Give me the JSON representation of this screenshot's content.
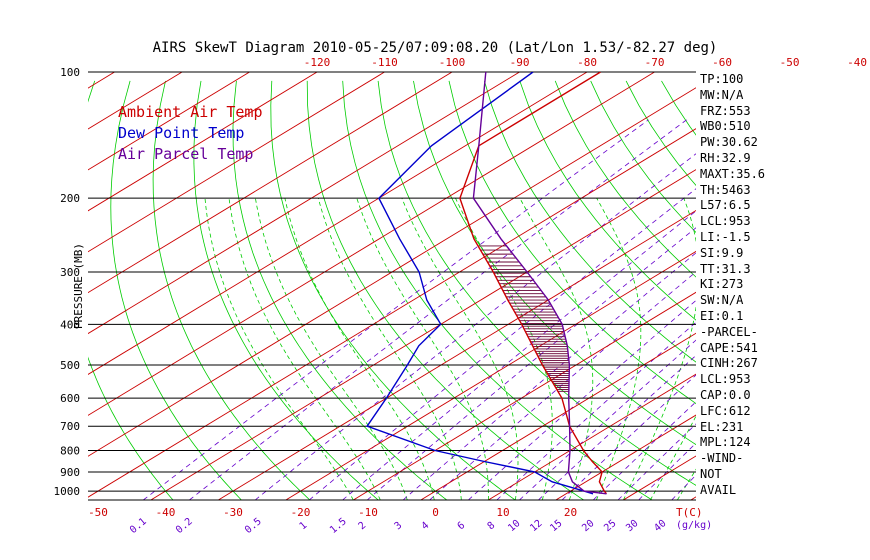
{
  "chart_data": {
    "type": "line",
    "title": "AIRS SkewT Diagram 2010-05-25/07:09:08.20 (Lat/Lon 1.53/-82.27 deg)",
    "ylabel": "PRESSURE (MB)",
    "xlabel": "T(C)",
    "mixing_ratio_unit_label": "(g/kg)",
    "y_scale": "log",
    "ylim": [
      1050,
      100
    ],
    "xlim_bottom": [
      -50,
      25
    ],
    "pressure_ticks": [
      100,
      200,
      300,
      400,
      500,
      600,
      700,
      800,
      900,
      1000
    ],
    "bottom_temp_ticks": [
      -50,
      -40,
      -30,
      -20,
      -10,
      0,
      10,
      20
    ],
    "top_temp_ticks": [
      -120,
      -110,
      -100,
      -90,
      -80,
      -70,
      -60,
      -50,
      -40
    ],
    "mixing_ratio_labels": [
      "0.1",
      "0.2",
      "0.5",
      "1",
      "1.5",
      "2",
      "3",
      "4",
      "6",
      "8",
      "10",
      "12",
      "15",
      "20",
      "25",
      "30",
      "40"
    ],
    "legend": [
      {
        "name": "Ambient Air Temp",
        "color": "#cc0000"
      },
      {
        "name": "Dew Point Temp",
        "color": "#0000cc"
      },
      {
        "name": "Air Parcel Temp",
        "color": "#660099"
      }
    ],
    "colors": {
      "isotherms": "#cc0000",
      "dry_adiabats": "#00cc00",
      "moist_adiabats": "#00cc00",
      "mixing_ratio": "#6600cc",
      "cape_hatch": "#660033"
    },
    "series": [
      {
        "name": "Ambient Air Temp",
        "points": [
          [
            100,
            -78
          ],
          [
            150,
            -78
          ],
          [
            200,
            -68
          ],
          [
            250,
            -56
          ],
          [
            300,
            -45
          ],
          [
            350,
            -36
          ],
          [
            400,
            -28
          ],
          [
            500,
            -15
          ],
          [
            600,
            -4
          ],
          [
            700,
            4
          ],
          [
            800,
            12
          ],
          [
            850,
            16
          ],
          [
            900,
            20
          ],
          [
            950,
            22
          ],
          [
            1000,
            25
          ],
          [
            1015,
            26
          ]
        ]
      },
      {
        "name": "Dew Point Temp",
        "points": [
          [
            100,
            -88
          ],
          [
            150,
            -85
          ],
          [
            200,
            -80
          ],
          [
            250,
            -67
          ],
          [
            300,
            -56
          ],
          [
            350,
            -48
          ],
          [
            400,
            -40
          ],
          [
            450,
            -38
          ],
          [
            500,
            -35
          ],
          [
            600,
            -30
          ],
          [
            700,
            -26
          ],
          [
            800,
            -10
          ],
          [
            850,
            0
          ],
          [
            900,
            10
          ],
          [
            950,
            15
          ],
          [
            1000,
            22
          ],
          [
            1015,
            24
          ]
        ]
      },
      {
        "name": "Air Parcel Temp",
        "points": [
          [
            100,
            -95
          ],
          [
            150,
            -78
          ],
          [
            200,
            -66
          ],
          [
            250,
            -52
          ],
          [
            300,
            -40
          ],
          [
            350,
            -30
          ],
          [
            400,
            -22
          ],
          [
            450,
            -16
          ],
          [
            500,
            -11
          ],
          [
            600,
            -3
          ],
          [
            700,
            4
          ],
          [
            800,
            10
          ],
          [
            900,
            15
          ],
          [
            950,
            18
          ],
          [
            1000,
            22
          ],
          [
            1015,
            26
          ]
        ]
      }
    ]
  },
  "indices": [
    "TP:100",
    "MW:N/A",
    "FRZ:553",
    "WB0:510",
    "PW:30.62",
    "RH:32.9",
    "MAXT:35.6",
    "TH:5463",
    "L57:6.5",
    "LCL:953",
    "LI:-1.5",
    "SI:9.9",
    "TT:31.3",
    "KI:273",
    "SW:N/A",
    "EI:0.1",
    "-PARCEL-",
    "CAPE:541",
    "CINH:267",
    "LCL:953",
    "CAP:0.0",
    "LFC:612",
    "EL:231",
    "MPL:124",
    "-WIND-",
    "NOT",
    "AVAIL"
  ]
}
